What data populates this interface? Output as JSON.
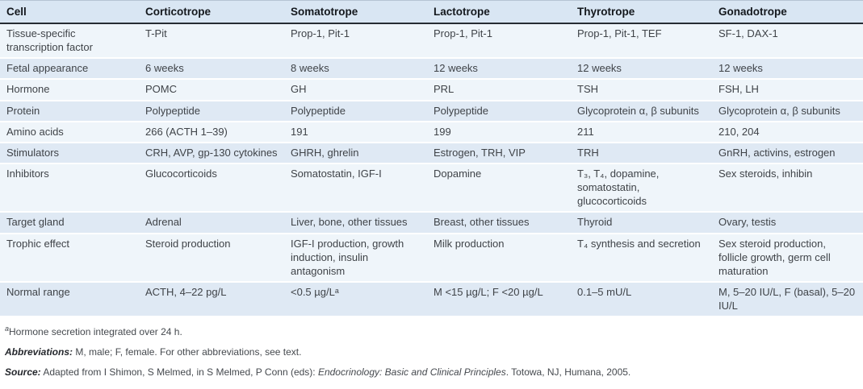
{
  "table": {
    "columns": [
      "Cell",
      "Corticotrope",
      "Somatotrope",
      "Lactotrope",
      "Thyrotrope",
      "Gonadotrope"
    ],
    "rows": [
      [
        "Tissue-specific transcription factor",
        "T-Pit",
        "Prop-1, Pit-1",
        "Prop-1, Pit-1",
        "Prop-1, Pit-1, TEF",
        "SF-1, DAX-1"
      ],
      [
        "Fetal appearance",
        "6 weeks",
        "8 weeks",
        "12 weeks",
        "12 weeks",
        "12 weeks"
      ],
      [
        "Hormone",
        "POMC",
        "GH",
        "PRL",
        "TSH",
        "FSH, LH"
      ],
      [
        "Protein",
        "Polypeptide",
        "Polypeptide",
        "Polypeptide",
        "Glycoprotein α, β subunits",
        "Glycoprotein α, β subunits"
      ],
      [
        "Amino acids",
        "266 (ACTH 1–39)",
        "191",
        "199",
        "211",
        "210, 204"
      ],
      [
        "Stimulators",
        "CRH, AVP, gp-130 cytokines",
        "GHRH, ghrelin",
        "Estrogen, TRH, VIP",
        "TRH",
        "GnRH, activins, estrogen"
      ],
      [
        "Inhibitors",
        "Glucocorticoids",
        "Somatostatin, IGF-I",
        "Dopamine",
        "T₃, T₄, dopamine, somatostatin, glucocorticoids",
        "Sex steroids, inhibin"
      ],
      [
        "Target gland",
        "Adrenal",
        "Liver, bone, other tissues",
        "Breast, other tissues",
        "Thyroid",
        "Ovary, testis"
      ],
      [
        "Trophic effect",
        "Steroid production",
        "IGF-I production, growth induction, insulin antagonism",
        "Milk production",
        "T₄ synthesis and secretion",
        "Sex steroid production, follicle growth, germ cell maturation"
      ],
      [
        "Normal range",
        "ACTH, 4–22 pg/L",
        "<0.5 µg/Lᵃ",
        "M <15 µg/L; F <20 µg/L",
        "0.1–5 mU/L",
        "M, 5–20 IU/L, F (basal), 5–20 IU/L"
      ]
    ]
  },
  "footnotes": {
    "note_a_marker": "a",
    "note_a_text": "Hormone secretion integrated over 24 h.",
    "abbreviations_label": "Abbreviations:",
    "abbreviations_text": " M, male; F, female. For other abbreviations, see text.",
    "source_label": "Source:",
    "source_text_1": " Adapted from I Shimon, S Melmed, in S Melmed, P Conn (eds): ",
    "source_title_italic": "Endocrinology: Basic and Clinical Principles",
    "source_text_2": ". Totowa, NJ, Humana, 2005."
  },
  "colors": {
    "header_bg": "#d9e6f3",
    "row_blue": "#dfe9f4",
    "row_light": "#eff5fa",
    "header_rule": "#262c33"
  }
}
